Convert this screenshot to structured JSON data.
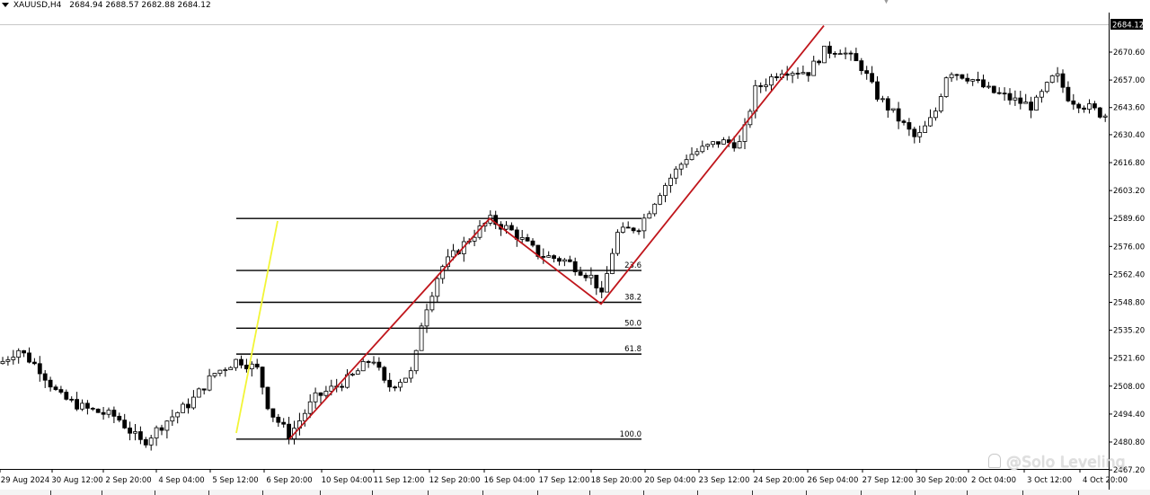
{
  "header": {
    "symbol": "XAUUSD,H4",
    "ohlc": "2684.94 2688.57 2682.88 2684.12",
    "dropdown_icon": "chevron-down-icon"
  },
  "price_axis": {
    "labels": [
      "2670.60",
      "2657.00",
      "2643.60",
      "2630.40",
      "2616.80",
      "2603.20",
      "2589.60",
      "2576.00",
      "2562.40",
      "2548.80",
      "2535.20",
      "2521.60",
      "2508.00",
      "2494.40",
      "2480.80",
      "2467.20"
    ],
    "current_price": "2684.12"
  },
  "time_axis": {
    "labels": [
      "29 Aug 2024",
      "30 Aug 12:00",
      "2 Sep 20:00",
      "4 Sep 04:00",
      "5 Sep 12:00",
      "6 Sep 20:00",
      "10 Sep 04:00",
      "11 Sep 12:00",
      "12 Sep 20:00",
      "16 Sep 04:00",
      "17 Sep 12:00",
      "18 Sep 20:00",
      "20 Sep 04:00",
      "23 Sep 12:00",
      "24 Sep 20:00",
      "26 Sep 04:00",
      "27 Sep 12:00",
      "30 Sep 20:00",
      "2 Oct 04:00",
      "3 Oct 12:00",
      "4 Oct 20:00"
    ]
  },
  "fibonacci": {
    "levels": [
      {
        "label": "",
        "price": 2589.6
      },
      {
        "label": "23.6",
        "price": 2564.3
      },
      {
        "label": "38.2",
        "price": 2548.8
      },
      {
        "label": "50.0",
        "price": 2536.2
      },
      {
        "label": "61.8",
        "price": 2523.6
      },
      {
        "label": "100.0",
        "price": 2482.2
      }
    ]
  },
  "zigzag": [
    {
      "time": "6 Sep 20:00",
      "price": 2482.2
    },
    {
      "time": "16 Sep 04:00",
      "price": 2589.6
    },
    {
      "time": "18 Sep 20:00",
      "price": 2548.0
    },
    {
      "time": "26 Sep 04:00",
      "price": 2683.5
    }
  ],
  "watermark": "@Solo Leveling",
  "watermark_icon": "person-icon",
  "colors": {
    "bull": "#ffffff",
    "bear": "#000000",
    "zigzag": "#c0161c",
    "trendline": "#f2f536",
    "fib": "#000000",
    "grid_separator": "#999999"
  }
}
